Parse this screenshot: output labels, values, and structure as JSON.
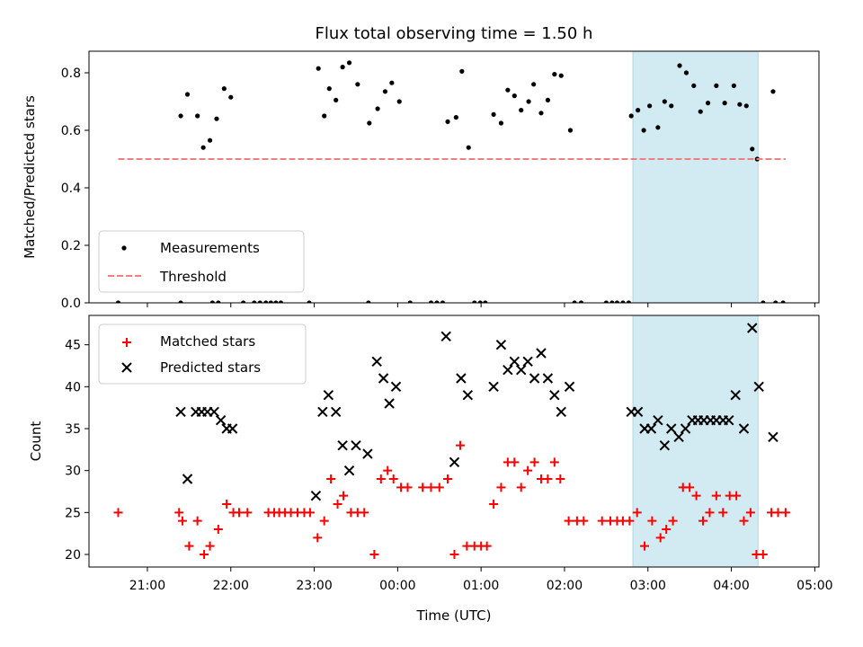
{
  "chart_data": {
    "type": "scatter",
    "title": "Flux total observing time = 1.50 h",
    "xlabel": "Time (UTC)",
    "x_unit": "hours since 00:00 UTC (negative = previous day)",
    "xlim": [
      -3.7,
      5.05
    ],
    "x_ticks": [
      {
        "value": -3,
        "label": "21:00"
      },
      {
        "value": -2,
        "label": "22:00"
      },
      {
        "value": -1,
        "label": "23:00"
      },
      {
        "value": 0,
        "label": "00:00"
      },
      {
        "value": 1,
        "label": "01:00"
      },
      {
        "value": 2,
        "label": "02:00"
      },
      {
        "value": 3,
        "label": "03:00"
      },
      {
        "value": 4,
        "label": "04:00"
      },
      {
        "value": 5,
        "label": "05:00"
      }
    ],
    "highlight_span": {
      "x_start": 2.82,
      "x_end": 4.32,
      "color": "#add8e6"
    },
    "panels": [
      {
        "name": "ratio",
        "ylabel": "Matched/Predicted stars",
        "ylim": [
          0,
          0.875
        ],
        "y_ticks": [
          0,
          0.2,
          0.4,
          0.6,
          0.8
        ],
        "y_tick_labels": [
          "0.0",
          "0.2",
          "0.4",
          "0.6",
          "0.8"
        ],
        "legend": {
          "position": "lower-left",
          "entries": [
            "Measurements",
            "Threshold"
          ]
        },
        "series": [
          {
            "name": "Measurements",
            "marker": "dot",
            "color": "#000000",
            "points": [
              [
                -3.35,
                0
              ],
              [
                -2.6,
                0
              ],
              [
                -2.22,
                0
              ],
              [
                -2.15,
                0
              ],
              [
                -1.85,
                0
              ],
              [
                -1.72,
                0
              ],
              [
                -1.65,
                0
              ],
              [
                -1.58,
                0
              ],
              [
                -1.52,
                0
              ],
              [
                -1.46,
                0
              ],
              [
                -1.4,
                0
              ],
              [
                -1.06,
                0
              ],
              [
                -0.35,
                0
              ],
              [
                0.15,
                0
              ],
              [
                0.4,
                0
              ],
              [
                0.47,
                0
              ],
              [
                0.54,
                0
              ],
              [
                0.92,
                0
              ],
              [
                0.99,
                0
              ],
              [
                1.05,
                0
              ],
              [
                2.12,
                0
              ],
              [
                2.2,
                0
              ],
              [
                2.5,
                0
              ],
              [
                2.57,
                0
              ],
              [
                2.63,
                0
              ],
              [
                2.7,
                0
              ],
              [
                2.77,
                0
              ],
              [
                4.38,
                0
              ],
              [
                4.53,
                0
              ],
              [
                4.62,
                0
              ],
              [
                -2.6,
                0.65
              ],
              [
                -2.52,
                0.725
              ],
              [
                -2.4,
                0.65
              ],
              [
                -2.33,
                0.54
              ],
              [
                -2.25,
                0.565
              ],
              [
                -2.17,
                0.64
              ],
              [
                -2.08,
                0.745
              ],
              [
                -2.0,
                0.715
              ],
              [
                -0.95,
                0.815
              ],
              [
                -0.88,
                0.65
              ],
              [
                -0.82,
                0.745
              ],
              [
                -0.74,
                0.705
              ],
              [
                -0.66,
                0.82
              ],
              [
                -0.58,
                0.835
              ],
              [
                -0.48,
                0.76
              ],
              [
                -0.34,
                0.625
              ],
              [
                -0.24,
                0.675
              ],
              [
                -0.15,
                0.735
              ],
              [
                -0.07,
                0.765
              ],
              [
                0.02,
                0.7
              ],
              [
                0.6,
                0.63
              ],
              [
                0.7,
                0.645
              ],
              [
                0.77,
                0.805
              ],
              [
                0.85,
                0.54
              ],
              [
                1.15,
                0.655
              ],
              [
                1.24,
                0.625
              ],
              [
                1.32,
                0.74
              ],
              [
                1.4,
                0.72
              ],
              [
                1.48,
                0.67
              ],
              [
                1.57,
                0.7
              ],
              [
                1.63,
                0.76
              ],
              [
                1.72,
                0.66
              ],
              [
                1.8,
                0.705
              ],
              [
                1.88,
                0.795
              ],
              [
                1.96,
                0.79
              ],
              [
                2.07,
                0.6
              ],
              [
                2.8,
                0.65
              ],
              [
                2.88,
                0.67
              ],
              [
                2.95,
                0.6
              ],
              [
                3.02,
                0.685
              ],
              [
                3.12,
                0.61
              ],
              [
                3.2,
                0.7
              ],
              [
                3.28,
                0.685
              ],
              [
                3.38,
                0.825
              ],
              [
                3.46,
                0.8
              ],
              [
                3.55,
                0.755
              ],
              [
                3.63,
                0.665
              ],
              [
                3.72,
                0.695
              ],
              [
                3.82,
                0.755
              ],
              [
                3.92,
                0.695
              ],
              [
                4.03,
                0.755
              ],
              [
                4.1,
                0.69
              ],
              [
                4.18,
                0.685
              ],
              [
                4.25,
                0.535
              ],
              [
                4.31,
                0.5
              ],
              [
                4.5,
                0.735
              ]
            ]
          },
          {
            "name": "Threshold",
            "marker": "dashed-line",
            "color": "#f08080",
            "x": [
              -3.35,
              4.65
            ],
            "y": [
              0.5,
              0.5
            ]
          }
        ]
      },
      {
        "name": "counts",
        "ylabel": "Count",
        "ylim": [
          18.5,
          48.5
        ],
        "y_ticks": [
          20,
          25,
          30,
          35,
          40,
          45
        ],
        "y_tick_labels": [
          "20",
          "25",
          "30",
          "35",
          "40",
          "45"
        ],
        "legend": {
          "position": "top-left",
          "entries": [
            "Matched stars",
            "Predicted stars"
          ]
        },
        "series": [
          {
            "name": "Matched stars",
            "marker": "plus",
            "color": "#ff0000",
            "points": [
              [
                -3.35,
                25
              ],
              [
                -2.62,
                25
              ],
              [
                -2.58,
                24
              ],
              [
                -2.5,
                21
              ],
              [
                -2.4,
                24
              ],
              [
                -2.32,
                20
              ],
              [
                -2.25,
                21
              ],
              [
                -2.15,
                23
              ],
              [
                -2.05,
                26
              ],
              [
                -1.97,
                25
              ],
              [
                -1.9,
                25
              ],
              [
                -1.8,
                25
              ],
              [
                -1.55,
                25
              ],
              [
                -1.48,
                25
              ],
              [
                -1.42,
                25
              ],
              [
                -1.35,
                25
              ],
              [
                -1.28,
                25
              ],
              [
                -1.2,
                25
              ],
              [
                -1.12,
                25
              ],
              [
                -1.05,
                25
              ],
              [
                -0.96,
                22
              ],
              [
                -0.88,
                24
              ],
              [
                -0.8,
                29
              ],
              [
                -0.72,
                26
              ],
              [
                -0.65,
                27
              ],
              [
                -0.56,
                25
              ],
              [
                -0.48,
                25
              ],
              [
                -0.4,
                25
              ],
              [
                -0.28,
                20
              ],
              [
                -0.2,
                29
              ],
              [
                -0.12,
                30
              ],
              [
                -0.05,
                29
              ],
              [
                0.04,
                28
              ],
              [
                0.12,
                28
              ],
              [
                0.3,
                28
              ],
              [
                0.4,
                28
              ],
              [
                0.5,
                28
              ],
              [
                0.6,
                29
              ],
              [
                0.68,
                20
              ],
              [
                0.75,
                33
              ],
              [
                0.83,
                21
              ],
              [
                0.92,
                21
              ],
              [
                1.0,
                21
              ],
              [
                1.07,
                21
              ],
              [
                1.15,
                26
              ],
              [
                1.24,
                28
              ],
              [
                1.32,
                31
              ],
              [
                1.4,
                31
              ],
              [
                1.48,
                28
              ],
              [
                1.56,
                30
              ],
              [
                1.64,
                31
              ],
              [
                1.72,
                29
              ],
              [
                1.8,
                29
              ],
              [
                1.88,
                31
              ],
              [
                1.95,
                29
              ],
              [
                2.05,
                24
              ],
              [
                2.15,
                24
              ],
              [
                2.23,
                24
              ],
              [
                2.45,
                24
              ],
              [
                2.55,
                24
              ],
              [
                2.63,
                24
              ],
              [
                2.7,
                24
              ],
              [
                2.78,
                24
              ],
              [
                2.87,
                25
              ],
              [
                2.96,
                21
              ],
              [
                3.05,
                24
              ],
              [
                3.15,
                22
              ],
              [
                3.22,
                23
              ],
              [
                3.3,
                24
              ],
              [
                3.42,
                28
              ],
              [
                3.5,
                28
              ],
              [
                3.58,
                27
              ],
              [
                3.66,
                24
              ],
              [
                3.74,
                25
              ],
              [
                3.82,
                27
              ],
              [
                3.9,
                25
              ],
              [
                3.98,
                27
              ],
              [
                4.06,
                27
              ],
              [
                4.15,
                24
              ],
              [
                4.23,
                25
              ],
              [
                4.3,
                20
              ],
              [
                4.38,
                20
              ],
              [
                4.48,
                25
              ],
              [
                4.56,
                25
              ],
              [
                4.65,
                25
              ]
            ]
          },
          {
            "name": "Predicted stars",
            "marker": "x",
            "color": "#000000",
            "points": [
              [
                -2.6,
                37
              ],
              [
                -2.52,
                29
              ],
              [
                -2.42,
                37
              ],
              [
                -2.35,
                37
              ],
              [
                -2.28,
                37
              ],
              [
                -2.2,
                37
              ],
              [
                -2.12,
                36
              ],
              [
                -2.05,
                35
              ],
              [
                -1.98,
                35
              ],
              [
                -0.98,
                27
              ],
              [
                -0.9,
                37
              ],
              [
                -0.83,
                39
              ],
              [
                -0.74,
                37
              ],
              [
                -0.66,
                33
              ],
              [
                -0.58,
                30
              ],
              [
                -0.5,
                33
              ],
              [
                -0.36,
                32
              ],
              [
                -0.25,
                43
              ],
              [
                -0.17,
                41
              ],
              [
                -0.1,
                38
              ],
              [
                -0.02,
                40
              ],
              [
                0.58,
                46
              ],
              [
                0.68,
                31
              ],
              [
                0.76,
                41
              ],
              [
                0.84,
                39
              ],
              [
                1.15,
                40
              ],
              [
                1.24,
                45
              ],
              [
                1.32,
                42
              ],
              [
                1.4,
                43
              ],
              [
                1.48,
                42
              ],
              [
                1.56,
                43
              ],
              [
                1.64,
                41
              ],
              [
                1.72,
                44
              ],
              [
                1.8,
                41
              ],
              [
                1.88,
                39
              ],
              [
                1.96,
                37
              ],
              [
                2.06,
                40
              ],
              [
                2.8,
                37
              ],
              [
                2.88,
                37
              ],
              [
                2.96,
                35
              ],
              [
                3.04,
                35
              ],
              [
                3.12,
                36
              ],
              [
                3.2,
                33
              ],
              [
                3.28,
                35
              ],
              [
                3.37,
                34
              ],
              [
                3.45,
                35
              ],
              [
                3.53,
                36
              ],
              [
                3.6,
                36
              ],
              [
                3.67,
                36
              ],
              [
                3.75,
                36
              ],
              [
                3.82,
                36
              ],
              [
                3.9,
                36
              ],
              [
                3.97,
                36
              ],
              [
                4.05,
                39
              ],
              [
                4.15,
                35
              ],
              [
                4.25,
                47
              ],
              [
                4.33,
                40
              ],
              [
                4.5,
                34
              ]
            ]
          }
        ]
      }
    ]
  }
}
